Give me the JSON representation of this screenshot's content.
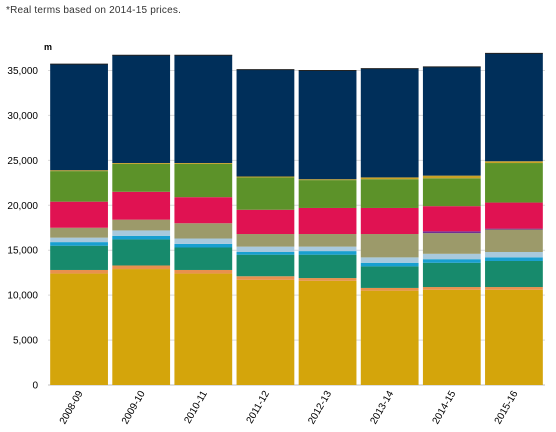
{
  "note": "*Real terms based on 2014-15 prices.",
  "chart_data": {
    "type": "bar",
    "stacked": true,
    "unit_label": "m",
    "ylim": [
      0,
      37500
    ],
    "yticks": [
      0,
      5000,
      10000,
      15000,
      20000,
      25000,
      30000,
      35000
    ],
    "ytick_labels": [
      "0",
      "5,000",
      "10,000",
      "15,000",
      "20,000",
      "25,000",
      "30,000",
      "35,000"
    ],
    "grid": true,
    "legend": "none",
    "categories": [
      "2008-09",
      "2009-10",
      "2010-11",
      "2011-12",
      "2012-13",
      "2013-14",
      "2014-15",
      "2015-16"
    ],
    "series": [
      {
        "color": "#d4a50b",
        "values": [
          12400,
          12900,
          12400,
          11700,
          11600,
          10500,
          10600,
          10600
        ]
      },
      {
        "color": "#e8914e",
        "values": [
          400,
          400,
          400,
          400,
          300,
          300,
          300,
          300
        ]
      },
      {
        "color": "#178a6c",
        "values": [
          2700,
          2900,
          2500,
          2400,
          2600,
          2400,
          2700,
          2900
        ]
      },
      {
        "color": "#189fd0",
        "values": [
          400,
          400,
          400,
          300,
          400,
          400,
          400,
          400
        ]
      },
      {
        "color": "#a8c9dd",
        "values": [
          500,
          600,
          600,
          600,
          500,
          600,
          600,
          600
        ]
      },
      {
        "color": "#9c9a6a",
        "values": [
          1100,
          1200,
          1700,
          1400,
          1400,
          2600,
          2300,
          2500
        ]
      },
      {
        "color": "#6e2f93",
        "values": [
          0,
          0,
          0,
          0,
          0,
          0,
          200,
          100
        ]
      },
      {
        "color": "#e01252",
        "values": [
          2900,
          3100,
          2900,
          2700,
          2900,
          2900,
          2800,
          2900
        ]
      },
      {
        "color": "#5c9229",
        "values": [
          3400,
          3100,
          3700,
          3600,
          3100,
          3200,
          3100,
          4400
        ]
      },
      {
        "color": "#c9a227",
        "values": [
          100,
          100,
          100,
          100,
          100,
          200,
          300,
          200
        ]
      },
      {
        "color": "#002f5a",
        "values": [
          11800,
          12000,
          12000,
          11900,
          12100,
          12100,
          12100,
          12000
        ]
      }
    ]
  }
}
